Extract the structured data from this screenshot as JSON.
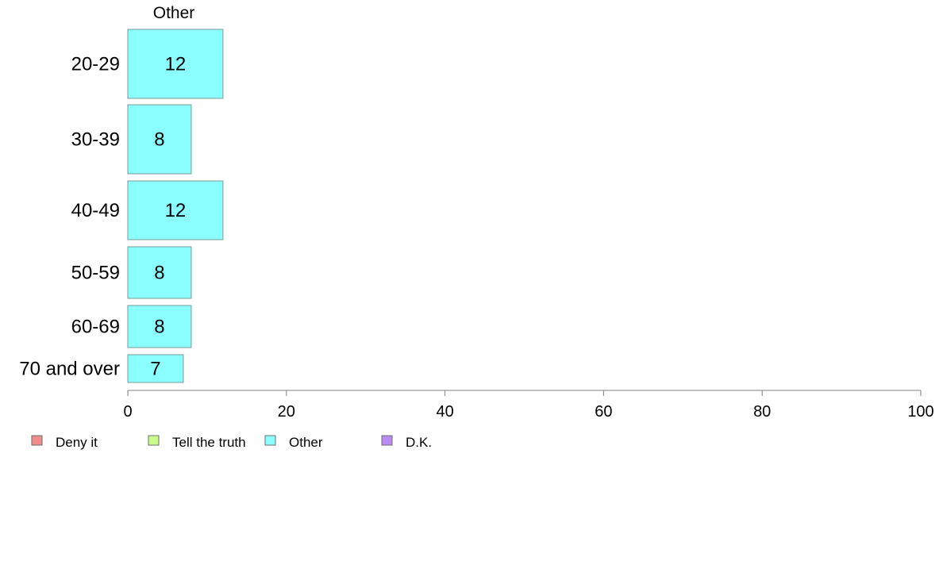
{
  "chart_data": {
    "type": "bar",
    "orientation": "horizontal",
    "stacked": true,
    "column_header": "Other",
    "categories": [
      "20-29",
      "30-39",
      "40-49",
      "50-59",
      "60-69",
      "70 and over"
    ],
    "series": [
      {
        "name": "Deny it",
        "color": "#f28b8b",
        "values": [
          0,
          0,
          0,
          0,
          0,
          0
        ]
      },
      {
        "name": "Tell the truth",
        "color": "#c8ff8b",
        "values": [
          0,
          0,
          0,
          0,
          0,
          0
        ]
      },
      {
        "name": "Other",
        "color": "#8bffff",
        "values": [
          12,
          8,
          12,
          8,
          8,
          7
        ]
      },
      {
        "name": "D.K.",
        "color": "#b98bf2",
        "values": [
          0,
          0,
          0,
          0,
          0,
          0
        ]
      }
    ],
    "data_labels": [
      "12",
      "8",
      "12",
      "8",
      "8",
      "7"
    ],
    "xlim": [
      0,
      100
    ],
    "xticks": [
      0,
      20,
      40,
      60,
      80,
      100
    ],
    "xtick_labels": [
      "0",
      "20",
      "40",
      "60",
      "80",
      "100"
    ],
    "grid": false,
    "legend_position": "bottom-left"
  }
}
